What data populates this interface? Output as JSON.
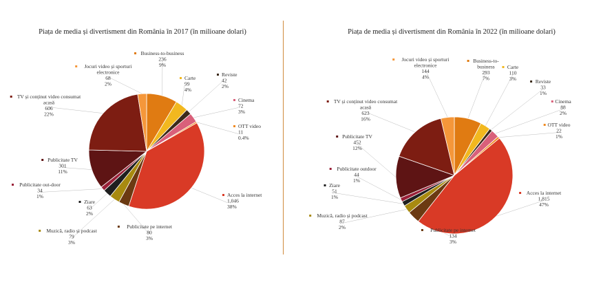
{
  "chart_data": [
    {
      "type": "pie",
      "title": "Piața de media și divertisment din România în 2017 (în milioane dolari)",
      "slices": [
        {
          "name": "Business-to-business",
          "value": "236",
          "pct": "9%",
          "num": 236,
          "color": "#e07b12"
        },
        {
          "name": "Carte",
          "value": "99",
          "pct": "4%",
          "num": 99,
          "color": "#f2b81f"
        },
        {
          "name": "Reviste",
          "value": "42",
          "pct": "2%",
          "num": 42,
          "color": "#3b2a1a"
        },
        {
          "name": "Cinema",
          "value": "72",
          "pct": "3%",
          "num": 72,
          "color": "#d9607a"
        },
        {
          "name": "OTT video",
          "value": "11",
          "pct": "0.4%",
          "num": 11,
          "color": "#f08a20"
        },
        {
          "name": "Acces la internet",
          "value": "1,046",
          "pct": "38%",
          "num": 1046,
          "color": "#d93a26"
        },
        {
          "name": "Publicitate pe internet",
          "value": "80",
          "pct": "3%",
          "num": 80,
          "color": "#6b3a12"
        },
        {
          "name": "Muzică, radio și podcast",
          "value": "79",
          "pct": "3%",
          "num": 79,
          "color": "#a88a10"
        },
        {
          "name": "Ziare",
          "value": "63",
          "pct": "2%",
          "num": 63,
          "color": "#1f1f1f"
        },
        {
          "name": "Publicitate out-door",
          "value": "34",
          "pct": "1%",
          "num": 34,
          "color": "#9a2038"
        },
        {
          "name": "Publicitate TV",
          "value": "301",
          "pct": "11%",
          "num": 301,
          "color": "#5e1414"
        },
        {
          "name": "TV și conținut video consumat acasă",
          "value": "606",
          "pct": "22%",
          "num": 606,
          "color": "#7d1d12"
        },
        {
          "name": "Jocuri video și sporturi electronice",
          "value": "68",
          "pct": "2%",
          "num": 68,
          "color": "#f5973a"
        }
      ]
    },
    {
      "type": "pie",
      "title": "Piața de media și divertisment din România în 2022 (în milioane dolari)",
      "slices": [
        {
          "name": "Business-to-business",
          "value": "293",
          "pct": "7%",
          "num": 293,
          "color": "#e07b12"
        },
        {
          "name": "Carte",
          "value": "110",
          "pct": "3%",
          "num": 110,
          "color": "#f2b81f"
        },
        {
          "name": "Reviste",
          "value": "33",
          "pct": "1%",
          "num": 33,
          "color": "#3b2a1a"
        },
        {
          "name": "Cinema",
          "value": "88",
          "pct": "2%",
          "num": 88,
          "color": "#d9607a"
        },
        {
          "name": "OTT video",
          "value": "22",
          "pct": "1%",
          "num": 22,
          "color": "#f08a20"
        },
        {
          "name": "Acces la internet",
          "value": "1,815",
          "pct": "47%",
          "num": 1815,
          "color": "#d93a26"
        },
        {
          "name": "Publicitate pe internet",
          "value": "134",
          "pct": "3%",
          "num": 134,
          "color": "#6b3a12"
        },
        {
          "name": "Muzică, radio și podcast",
          "value": "87",
          "pct": "2%",
          "num": 87,
          "color": "#a88a10"
        },
        {
          "name": "Ziare",
          "value": "51",
          "pct": "1%",
          "num": 51,
          "color": "#1f1f1f"
        },
        {
          "name": "Publicitate outdoor",
          "value": "44",
          "pct": "1%",
          "num": 44,
          "color": "#9a2038"
        },
        {
          "name": "Publicitate TV",
          "value": "452",
          "pct": "12%",
          "num": 452,
          "color": "#5e1414"
        },
        {
          "name": "TV și conținut video consumat acasă",
          "value": "623",
          "pct": "16%",
          "num": 623,
          "color": "#7d1d12"
        },
        {
          "name": "Jocuri video și sporturi electronice",
          "value": "144",
          "pct": "4%",
          "num": 144,
          "color": "#f5973a"
        }
      ]
    }
  ]
}
